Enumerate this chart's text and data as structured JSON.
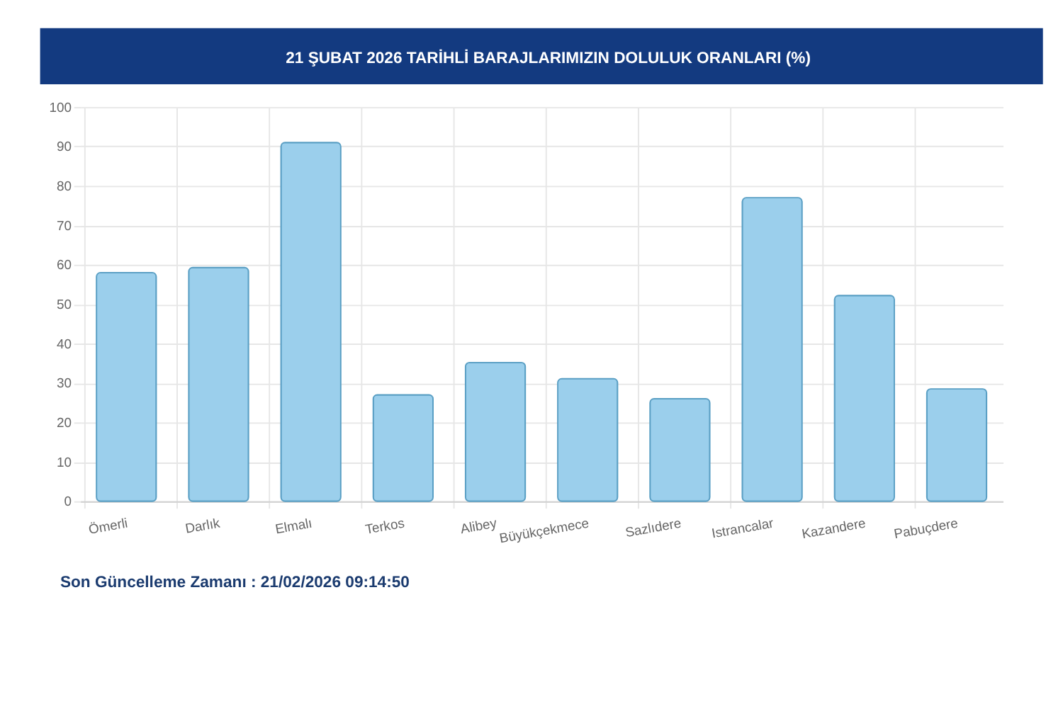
{
  "chart_data": {
    "type": "bar",
    "title": "21 ŞUBAT 2026 TARİHLİ BARAJLARIMIZIN DOLULUK ORANLARI (%)",
    "categories": [
      "Ömerli",
      "Darlık",
      "Elmalı",
      "Terkos",
      "Alibey",
      "Büyükçekmece",
      "Sazlıdere",
      "Istrancalar",
      "Kazandere",
      "Pabuçdere"
    ],
    "values": [
      58.0,
      59.3,
      91.0,
      27.0,
      35.2,
      31.1,
      26.0,
      77.0,
      52.2,
      28.5
    ],
    "color": "#9bcfec",
    "ylim": [
      0,
      100
    ],
    "yticks": [
      0,
      10,
      20,
      30,
      40,
      50,
      60,
      70,
      80,
      90,
      100
    ],
    "grid": true,
    "annotations": [
      "Son Güncelleme Zamanı : 21/02/2026 09:14:50"
    ]
  }
}
